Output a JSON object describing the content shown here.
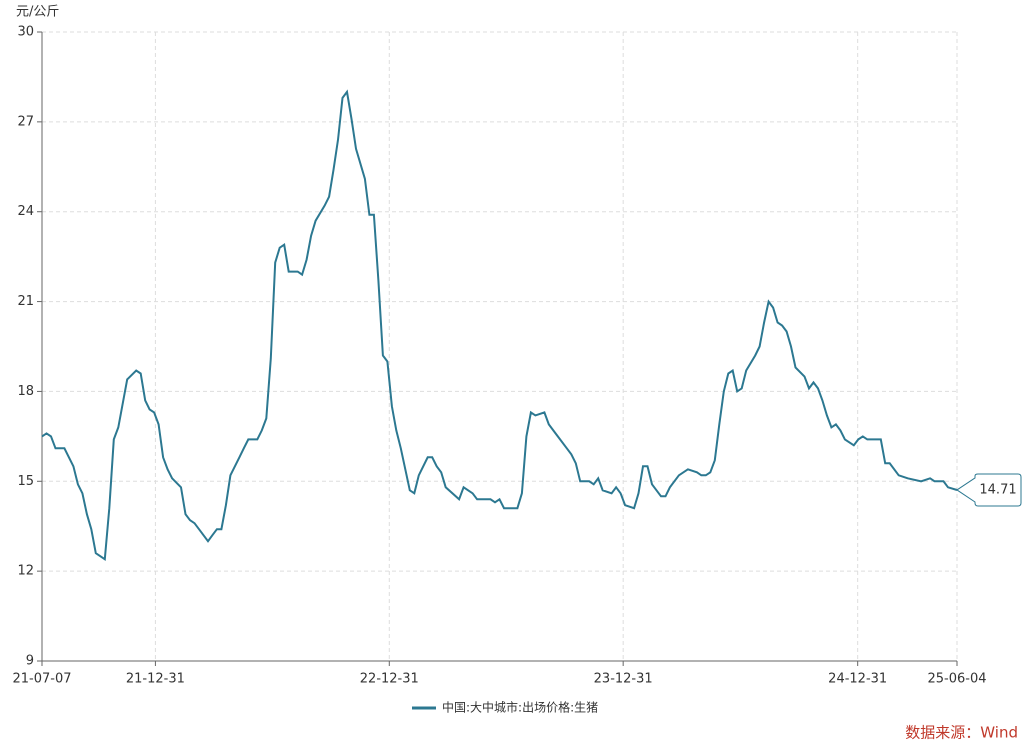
{
  "chart_data": {
    "type": "line",
    "y_label": "元/公斤",
    "source": "数据来源：Wind",
    "xlim": [
      "21-07-07",
      "25-06-04"
    ],
    "xticks": [
      "21-07-07",
      "21-12-31",
      "22-12-31",
      "23-12-31",
      "24-12-31",
      "25-06-04"
    ],
    "ylim": [
      9,
      30
    ],
    "yticks": [
      9,
      12,
      15,
      18,
      21,
      24,
      27,
      30
    ],
    "grid": true,
    "legend": "bottom",
    "x": [
      "21-07-07",
      "21-07-14",
      "21-07-21",
      "21-07-28",
      "21-08-11",
      "21-08-25",
      "21-09-01",
      "21-09-08",
      "21-09-15",
      "21-09-22",
      "21-09-29",
      "21-10-13",
      "21-10-20",
      "21-10-27",
      "21-11-03",
      "21-11-17",
      "21-12-01",
      "21-12-08",
      "21-12-15",
      "21-12-22",
      "21-12-29",
      "22-01-05",
      "22-01-12",
      "22-01-19",
      "22-01-26",
      "22-02-09",
      "22-02-16",
      "22-02-23",
      "22-03-02",
      "22-03-09",
      "22-03-23",
      "22-03-30",
      "22-04-06",
      "22-04-13",
      "22-04-20",
      "22-04-27",
      "22-05-04",
      "22-05-11",
      "22-05-18",
      "22-05-25",
      "22-06-08",
      "22-06-15",
      "22-06-22",
      "22-06-29",
      "22-07-06",
      "22-07-13",
      "22-07-20",
      "22-07-27",
      "22-08-03",
      "22-08-10",
      "22-08-17",
      "22-08-24",
      "22-08-31",
      "22-09-07",
      "22-09-21",
      "22-09-28",
      "22-10-05",
      "22-10-12",
      "22-10-19",
      "22-10-26",
      "22-11-02",
      "22-11-09",
      "22-11-23",
      "22-11-30",
      "22-12-07",
      "22-12-14",
      "22-12-21",
      "22-12-28",
      "23-01-04",
      "23-01-11",
      "23-01-18",
      "23-01-25",
      "23-02-01",
      "23-02-08",
      "23-02-15",
      "23-03-01",
      "23-03-08",
      "23-03-15",
      "23-03-22",
      "23-03-29",
      "23-04-19",
      "23-04-26",
      "23-05-10",
      "23-05-17",
      "23-05-24",
      "23-06-07",
      "23-06-14",
      "23-06-21",
      "23-06-28",
      "23-07-19",
      "23-07-26",
      "23-08-02",
      "23-08-09",
      "23-08-16",
      "23-08-30",
      "23-09-06",
      "23-09-20",
      "23-10-04",
      "23-10-11",
      "23-10-18",
      "23-10-25",
      "23-11-08",
      "23-11-15",
      "23-11-22",
      "23-11-29",
      "23-12-13",
      "23-12-20",
      "23-12-27",
      "24-01-03",
      "24-01-17",
      "24-01-24",
      "24-01-31",
      "24-02-07",
      "24-02-14",
      "24-02-28",
      "24-03-06",
      "24-03-13",
      "24-03-27",
      "24-04-10",
      "24-04-24",
      "24-05-01",
      "24-05-08",
      "24-05-15",
      "24-05-22",
      "24-05-29",
      "24-06-05",
      "24-06-12",
      "24-06-19",
      "24-06-26",
      "24-07-03",
      "24-07-10",
      "24-07-24",
      "24-07-31",
      "24-08-07",
      "24-08-14",
      "24-08-21",
      "24-08-28",
      "24-09-04",
      "24-09-11",
      "24-09-18",
      "24-09-25",
      "24-10-09",
      "24-10-16",
      "24-10-23",
      "24-10-30",
      "24-11-06",
      "24-11-13",
      "24-11-20",
      "24-11-27",
      "24-12-04",
      "24-12-11",
      "24-12-25",
      "25-01-01",
      "25-01-08",
      "25-01-15",
      "25-02-05",
      "25-02-12",
      "25-02-19",
      "25-03-05",
      "25-03-19",
      "25-04-09",
      "25-04-23",
      "25-04-30",
      "25-05-14",
      "25-05-21",
      "25-06-04"
    ],
    "series": [
      {
        "name": "中国:大中城市:出场价格:生猪",
        "color": "#2c7891",
        "values": [
          16.5,
          16.6,
          16.5,
          16.1,
          16.1,
          15.5,
          14.9,
          14.6,
          13.9,
          13.4,
          12.6,
          12.4,
          14.1,
          16.4,
          16.8,
          18.4,
          18.7,
          18.6,
          17.7,
          17.4,
          17.3,
          16.9,
          15.8,
          15.4,
          15.1,
          14.8,
          13.9,
          13.7,
          13.6,
          13.4,
          13.0,
          13.2,
          13.4,
          13.4,
          14.2,
          15.2,
          15.5,
          15.8,
          16.1,
          16.4,
          16.4,
          16.7,
          17.1,
          19.1,
          22.3,
          22.8,
          22.9,
          22.0,
          22.0,
          22.0,
          21.9,
          22.4,
          23.2,
          23.7,
          24.2,
          24.5,
          25.4,
          26.4,
          27.8,
          28.0,
          27.1,
          26.1,
          25.1,
          23.9,
          23.9,
          21.7,
          19.2,
          19.0,
          17.5,
          16.7,
          16.1,
          15.4,
          14.7,
          14.6,
          15.2,
          15.8,
          15.8,
          15.5,
          15.3,
          14.8,
          14.4,
          14.8,
          14.6,
          14.4,
          14.4,
          14.4,
          14.3,
          14.4,
          14.1,
          14.1,
          14.6,
          16.5,
          17.3,
          17.2,
          17.3,
          16.9,
          16.5,
          16.1,
          15.9,
          15.6,
          15.0,
          15.0,
          14.9,
          15.1,
          14.7,
          14.6,
          14.8,
          14.6,
          14.2,
          14.1,
          14.6,
          15.5,
          15.5,
          14.9,
          14.5,
          14.5,
          14.8,
          15.2,
          15.4,
          15.3,
          15.2,
          15.2,
          15.3,
          15.7,
          16.9,
          18.0,
          18.6,
          18.7,
          18.0,
          18.1,
          18.7,
          19.2,
          19.5,
          20.3,
          21.0,
          20.8,
          20.3,
          20.2,
          20.0,
          19.5,
          18.8,
          18.5,
          18.1,
          18.3,
          18.1,
          17.7,
          17.2,
          16.8,
          16.9,
          16.7,
          16.4,
          16.2,
          16.4,
          16.5,
          16.4,
          16.4,
          15.6,
          15.6,
          15.2,
          15.1,
          15.0,
          15.1,
          15.0,
          15.0,
          14.8,
          14.71
        ]
      }
    ]
  }
}
